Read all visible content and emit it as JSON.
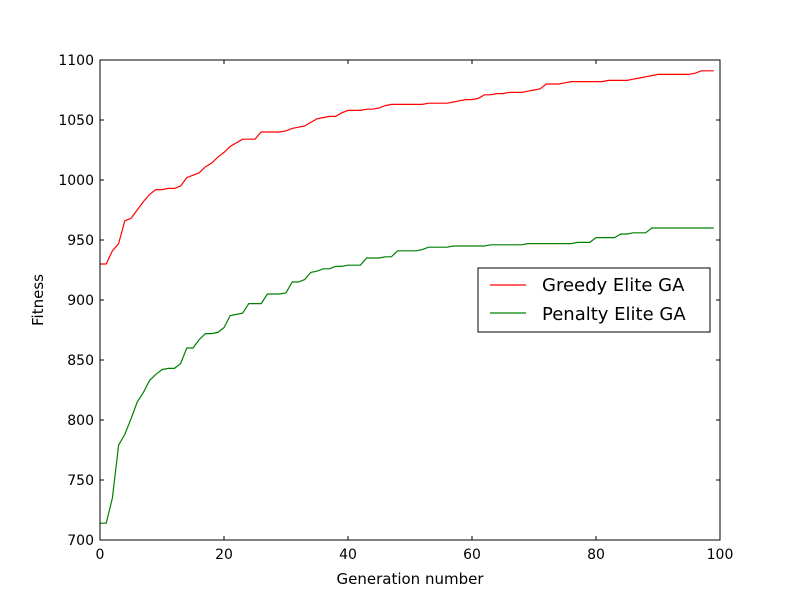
{
  "chart_data": {
    "type": "line",
    "xlabel": "Generation number",
    "ylabel": "Fitness",
    "xlim": [
      0,
      100
    ],
    "ylim": [
      700,
      1100
    ],
    "xticks": [
      "0",
      "20",
      "40",
      "60",
      "80",
      "100"
    ],
    "yticks": [
      "700",
      "750",
      "800",
      "850",
      "900",
      "950",
      "1000",
      "1050",
      "1100"
    ],
    "grid": false,
    "legend_position": "center-right",
    "series": [
      {
        "name": "Greedy Elite GA",
        "color": "#ff0000",
        "points": [
          [
            0,
            930
          ],
          [
            1,
            930
          ],
          [
            2,
            941
          ],
          [
            3,
            947
          ],
          [
            4,
            966
          ],
          [
            5,
            968
          ],
          [
            6,
            975
          ],
          [
            7,
            982
          ],
          [
            8,
            988
          ],
          [
            9,
            992
          ],
          [
            10,
            992
          ],
          [
            11,
            993
          ],
          [
            12,
            993
          ],
          [
            13,
            995
          ],
          [
            14,
            1002
          ],
          [
            15,
            1004
          ],
          [
            16,
            1006
          ],
          [
            17,
            1011
          ],
          [
            18,
            1014
          ],
          [
            19,
            1019
          ],
          [
            20,
            1023
          ],
          [
            21,
            1028
          ],
          [
            22,
            1031
          ],
          [
            23,
            1034
          ],
          [
            24,
            1034
          ],
          [
            25,
            1034
          ],
          [
            26,
            1040
          ],
          [
            27,
            1040
          ],
          [
            28,
            1040
          ],
          [
            29,
            1040
          ],
          [
            30,
            1041
          ],
          [
            31,
            1043
          ],
          [
            32,
            1044
          ],
          [
            33,
            1045
          ],
          [
            34,
            1048
          ],
          [
            35,
            1051
          ],
          [
            36,
            1052
          ],
          [
            37,
            1053
          ],
          [
            38,
            1053
          ],
          [
            39,
            1056
          ],
          [
            40,
            1058
          ],
          [
            41,
            1058
          ],
          [
            42,
            1058
          ],
          [
            43,
            1059
          ],
          [
            44,
            1059
          ],
          [
            45,
            1060
          ],
          [
            46,
            1062
          ],
          [
            47,
            1063
          ],
          [
            48,
            1063
          ],
          [
            49,
            1063
          ],
          [
            50,
            1063
          ],
          [
            51,
            1063
          ],
          [
            52,
            1063
          ],
          [
            53,
            1064
          ],
          [
            54,
            1064
          ],
          [
            55,
            1064
          ],
          [
            56,
            1064
          ],
          [
            57,
            1065
          ],
          [
            58,
            1066
          ],
          [
            59,
            1067
          ],
          [
            60,
            1067
          ],
          [
            61,
            1068
          ],
          [
            62,
            1071
          ],
          [
            63,
            1071
          ],
          [
            64,
            1072
          ],
          [
            65,
            1072
          ],
          [
            66,
            1073
          ],
          [
            67,
            1073
          ],
          [
            68,
            1073
          ],
          [
            69,
            1074
          ],
          [
            70,
            1075
          ],
          [
            71,
            1076
          ],
          [
            72,
            1080
          ],
          [
            73,
            1080
          ],
          [
            74,
            1080
          ],
          [
            75,
            1081
          ],
          [
            76,
            1082
          ],
          [
            77,
            1082
          ],
          [
            78,
            1082
          ],
          [
            79,
            1082
          ],
          [
            80,
            1082
          ],
          [
            81,
            1082
          ],
          [
            82,
            1083
          ],
          [
            83,
            1083
          ],
          [
            84,
            1083
          ],
          [
            85,
            1083
          ],
          [
            86,
            1084
          ],
          [
            87,
            1085
          ],
          [
            88,
            1086
          ],
          [
            89,
            1087
          ],
          [
            90,
            1088
          ],
          [
            91,
            1088
          ],
          [
            92,
            1088
          ],
          [
            93,
            1088
          ],
          [
            94,
            1088
          ],
          [
            95,
            1088
          ],
          [
            96,
            1089
          ],
          [
            97,
            1091
          ],
          [
            98,
            1091
          ],
          [
            99,
            1091
          ]
        ]
      },
      {
        "name": "Penalty Elite GA",
        "color": "#008000",
        "points": [
          [
            0,
            714
          ],
          [
            1,
            714
          ],
          [
            2,
            735
          ],
          [
            3,
            779
          ],
          [
            4,
            788
          ],
          [
            5,
            801
          ],
          [
            6,
            815
          ],
          [
            7,
            823
          ],
          [
            8,
            833
          ],
          [
            9,
            838
          ],
          [
            10,
            842
          ],
          [
            11,
            843
          ],
          [
            12,
            843
          ],
          [
            13,
            847
          ],
          [
            14,
            860
          ],
          [
            15,
            860
          ],
          [
            16,
            867
          ],
          [
            17,
            872
          ],
          [
            18,
            872
          ],
          [
            19,
            873
          ],
          [
            20,
            877
          ],
          [
            21,
            887
          ],
          [
            22,
            888
          ],
          [
            23,
            889
          ],
          [
            24,
            897
          ],
          [
            25,
            897
          ],
          [
            26,
            897
          ],
          [
            27,
            905
          ],
          [
            28,
            905
          ],
          [
            29,
            905
          ],
          [
            30,
            906
          ],
          [
            31,
            915
          ],
          [
            32,
            915
          ],
          [
            33,
            917
          ],
          [
            34,
            923
          ],
          [
            35,
            924
          ],
          [
            36,
            926
          ],
          [
            37,
            926
          ],
          [
            38,
            928
          ],
          [
            39,
            928
          ],
          [
            40,
            929
          ],
          [
            41,
            929
          ],
          [
            42,
            929
          ],
          [
            43,
            935
          ],
          [
            44,
            935
          ],
          [
            45,
            935
          ],
          [
            46,
            936
          ],
          [
            47,
            936
          ],
          [
            48,
            941
          ],
          [
            49,
            941
          ],
          [
            50,
            941
          ],
          [
            51,
            941
          ],
          [
            52,
            942
          ],
          [
            53,
            944
          ],
          [
            54,
            944
          ],
          [
            55,
            944
          ],
          [
            56,
            944
          ],
          [
            57,
            945
          ],
          [
            58,
            945
          ],
          [
            59,
            945
          ],
          [
            60,
            945
          ],
          [
            61,
            945
          ],
          [
            62,
            945
          ],
          [
            63,
            946
          ],
          [
            64,
            946
          ],
          [
            65,
            946
          ],
          [
            66,
            946
          ],
          [
            67,
            946
          ],
          [
            68,
            946
          ],
          [
            69,
            947
          ],
          [
            70,
            947
          ],
          [
            71,
            947
          ],
          [
            72,
            947
          ],
          [
            73,
            947
          ],
          [
            74,
            947
          ],
          [
            75,
            947
          ],
          [
            76,
            947
          ],
          [
            77,
            948
          ],
          [
            78,
            948
          ],
          [
            79,
            948
          ],
          [
            80,
            952
          ],
          [
            81,
            952
          ],
          [
            82,
            952
          ],
          [
            83,
            952
          ],
          [
            84,
            955
          ],
          [
            85,
            955
          ],
          [
            86,
            956
          ],
          [
            87,
            956
          ],
          [
            88,
            956
          ],
          [
            89,
            960
          ],
          [
            90,
            960
          ],
          [
            91,
            960
          ],
          [
            92,
            960
          ],
          [
            93,
            960
          ],
          [
            94,
            960
          ],
          [
            95,
            960
          ],
          [
            96,
            960
          ],
          [
            97,
            960
          ],
          [
            98,
            960
          ],
          [
            99,
            960
          ]
        ]
      }
    ]
  }
}
